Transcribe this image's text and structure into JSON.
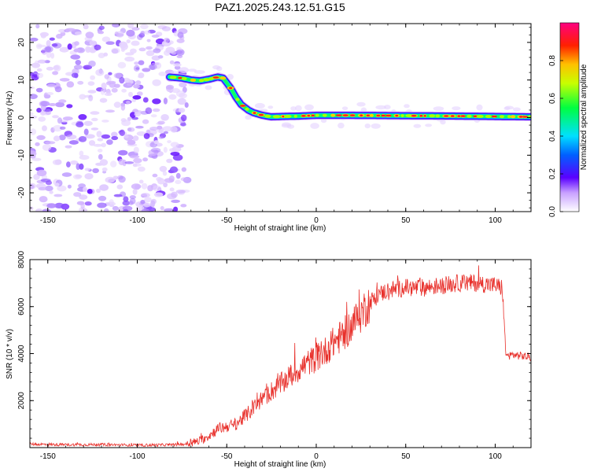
{
  "title": "PAZ1.2025.243.12.51.G15",
  "chart_data": [
    {
      "type": "heatmap",
      "xlabel": "Height of straight line (km)",
      "ylabel": "Frequency (Hz)",
      "xlim": [
        -160,
        120
      ],
      "ylim": [
        -25,
        25
      ],
      "xticks": [
        -150,
        -100,
        -50,
        0,
        50,
        100
      ],
      "yticks": [
        -20,
        -10,
        0,
        10,
        20
      ],
      "signal_ridge": {
        "x": [
          -82,
          -75,
          -70,
          -65,
          -60,
          -55,
          -52,
          -48,
          -45,
          -42,
          -38,
          -35,
          -30,
          -25,
          -20,
          -10,
          0,
          20,
          50,
          80,
          100,
          120
        ],
        "y": [
          10.8,
          10.5,
          10.0,
          9.8,
          10.2,
          10.8,
          10.5,
          8.0,
          5.5,
          3.5,
          2.0,
          1.3,
          0.6,
          0.2,
          0.3,
          0.4,
          0.6,
          0.6,
          0.5,
          0.4,
          0.3,
          0.2
        ]
      },
      "noise_region_xlim": [
        -160,
        -72
      ],
      "colorbar": {
        "label": "Normalized spectral amplitude",
        "ticks": [
          "0.0",
          "0.2",
          "0.4",
          "0.6",
          "0.8"
        ],
        "range": [
          0,
          1
        ]
      }
    },
    {
      "type": "line",
      "xlabel": "Height of straight line (km)",
      "ylabel": "SNR (10 * v/v)",
      "xlim": [
        -160,
        120
      ],
      "ylim": [
        0,
        8000
      ],
      "xticks": [
        -150,
        -100,
        -50,
        0,
        50,
        100
      ],
      "yticks": [
        2000,
        4000,
        6000,
        8000
      ],
      "series": [
        {
          "name": "SNR",
          "color": "#e8302b",
          "x": [
            -160,
            -140,
            -120,
            -100,
            -80,
            -72,
            -65,
            -60,
            -55,
            -50,
            -45,
            -40,
            -35,
            -30,
            -25,
            -20,
            -15,
            -10,
            -5,
            0,
            5,
            10,
            15,
            20,
            25,
            30,
            35,
            40,
            50,
            60,
            70,
            80,
            90,
            100,
            104,
            106,
            110,
            115,
            120
          ],
          "y": [
            150,
            120,
            130,
            100,
            120,
            150,
            300,
            500,
            800,
            900,
            1000,
            1300,
            1700,
            2100,
            2400,
            2700,
            3000,
            3300,
            3600,
            3800,
            4100,
            4500,
            4800,
            5200,
            5700,
            6200,
            6500,
            6700,
            6800,
            6800,
            6900,
            7000,
            7000,
            6900,
            6800,
            3900,
            3950,
            3900,
            3850
          ]
        }
      ]
    }
  ]
}
